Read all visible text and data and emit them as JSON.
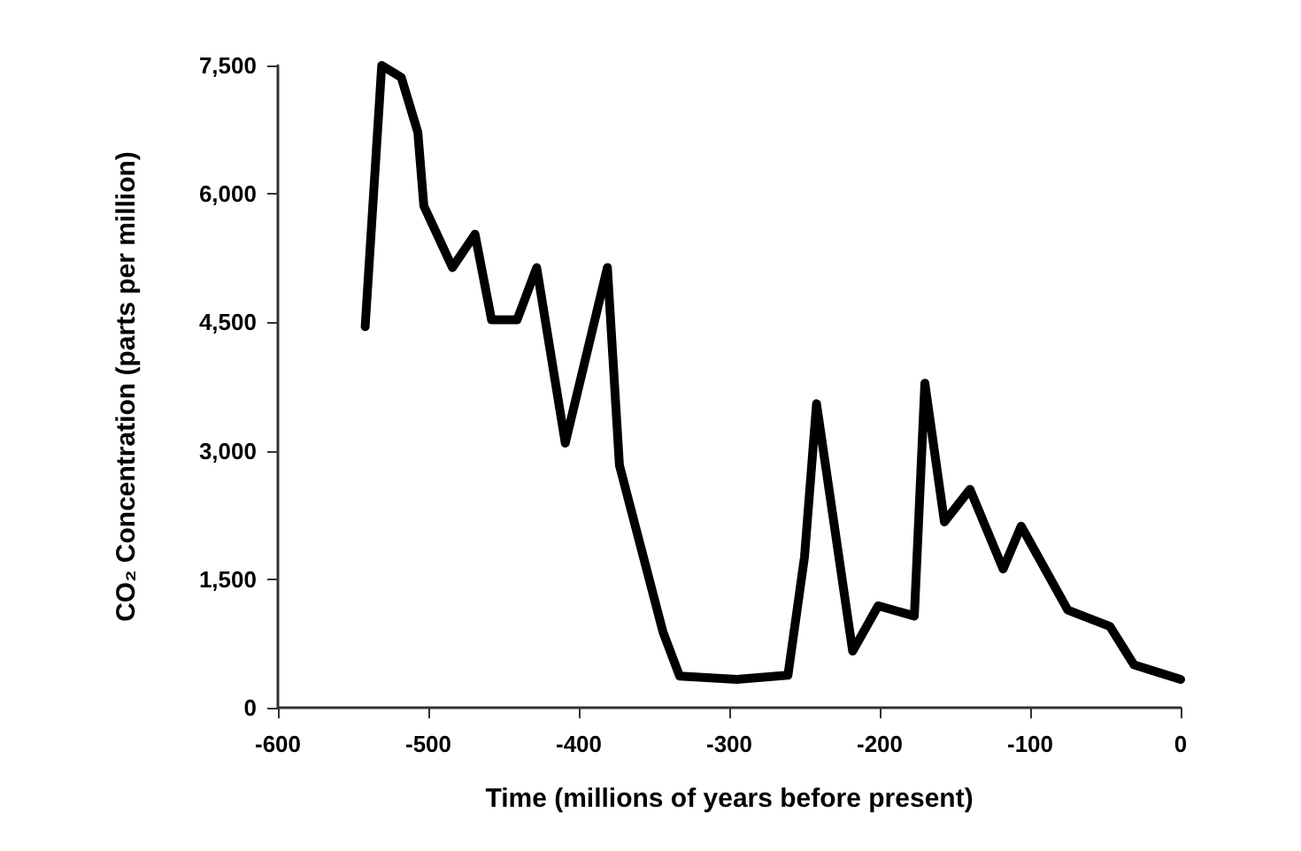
{
  "chart_data": {
    "type": "line",
    "xlabel": "Time (millions of years before present)",
    "ylabel": "CO₂ Concentration (parts per million)",
    "x": [
      -542,
      -531,
      -518,
      -507,
      -503,
      -484,
      -469,
      -458,
      -441,
      -428,
      -409,
      -381,
      -373,
      -344,
      -333,
      -295,
      -261,
      -250,
      -242,
      -218,
      -201,
      -177,
      -170,
      -157,
      -140,
      -118,
      -106,
      -75,
      -47,
      -31,
      0
    ],
    "series": [
      {
        "color": "#000000",
        "values": [
          4450,
          7500,
          7360,
          6720,
          5860,
          5140,
          5530,
          4530,
          4530,
          5140,
          3090,
          5140,
          2830,
          880,
          370,
          330,
          380,
          1760,
          3550,
          660,
          1190,
          1070,
          3790,
          2170,
          2550,
          1620,
          2120,
          1140,
          950,
          500,
          330
        ]
      }
    ],
    "xlim": [
      -600,
      0
    ],
    "xticks": [
      -600,
      -500,
      -400,
      -300,
      -200,
      -100,
      0
    ],
    "ylim": [
      0,
      7500
    ],
    "yticks": [
      0,
      {
        "value": 1500,
        "label": "1,500"
      },
      {
        "value": 3000,
        "label": "3,000"
      },
      {
        "value": 4500,
        "label": "4,500"
      },
      {
        "value": 6000,
        "label": "6,000"
      },
      {
        "value": 7500,
        "label": "7,500"
      }
    ],
    "grid": false,
    "marker": "none",
    "line_style": "solid"
  }
}
